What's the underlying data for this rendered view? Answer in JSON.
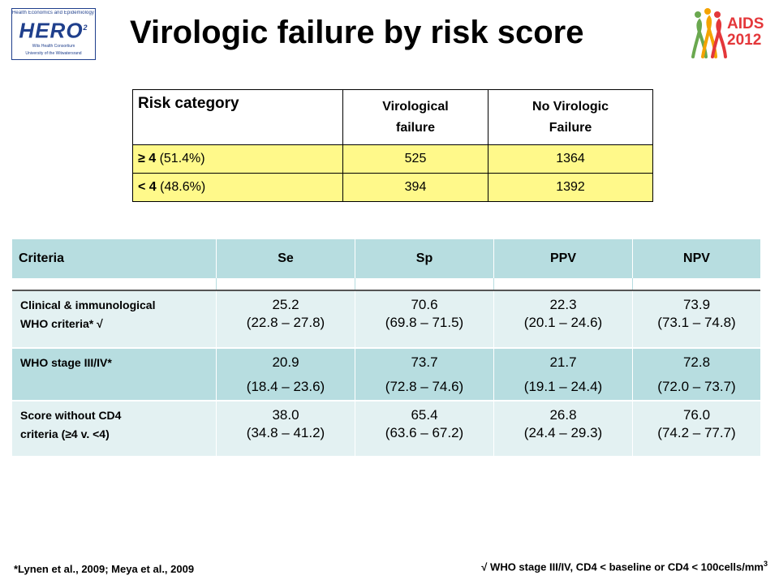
{
  "hero_logo": {
    "top_text": "Health Economics and Epidemiology Research Office",
    "word": "HERO",
    "superscript": "2",
    "bottom_line1": "Wits Health Consortium",
    "bottom_line2": "University of the Witwatersrand"
  },
  "title": "Virologic failure by risk score",
  "aids_logo": {
    "text_line1": "AIDS",
    "text_line2": "2012",
    "colors": [
      "#e4373a",
      "#6aa84f",
      "#f4a300"
    ]
  },
  "risk_table": {
    "headers": {
      "risk_category": "Risk category",
      "vf_line1": "Virological",
      "vf_line2": "failure",
      "novf_line1": "No Virologic",
      "novf_line2": "Failure"
    },
    "rows": [
      {
        "label_bold": "≥ 4",
        "label_rest": " (51.4%)",
        "vf": "525",
        "novf": "1364"
      },
      {
        "label_bold": "< 4",
        "label_rest": " (48.6%)",
        "vf": "394",
        "novf": "1392"
      }
    ]
  },
  "criteria_table": {
    "headers": [
      "Criteria",
      "Se",
      "Sp",
      "PPV",
      "NPV"
    ],
    "rows": [
      {
        "criteria_line1": "Clinical  & immunological",
        "criteria_line2": "WHO criteria* √",
        "se": [
          "25.2",
          "(22.8 – 27.8)"
        ],
        "sp": [
          "70.6",
          "(69.8 – 71.5)"
        ],
        "ppv": [
          "22.3",
          "(20.1 – 24.6)"
        ],
        "npv": [
          "73.9",
          "(73.1 – 74.8)"
        ]
      },
      {
        "criteria_line1": "WHO stage III/IV*",
        "criteria_line2": "",
        "se": [
          "20.9",
          "(18.4 – 23.6)"
        ],
        "sp": [
          "73.7",
          "(72.8 – 74.6)"
        ],
        "ppv": [
          "21.7",
          "(19.1 – 24.4)"
        ],
        "npv": [
          "72.8",
          "(72.0 – 73.7)"
        ]
      },
      {
        "criteria_line1": "Score without CD4",
        "criteria_line2": "criteria (≥4 v. <4)",
        "se": [
          "38.0",
          "(34.8 – 41.2)"
        ],
        "sp": [
          "65.4",
          "(63.6 – 67.2)"
        ],
        "ppv": [
          "26.8",
          "(24.4 – 29.3)"
        ],
        "npv": [
          "76.0",
          "(74.2 – 77.7)"
        ]
      }
    ]
  },
  "footnote_left": "*Lynen et al., 2009; Meya et al., 2009",
  "footnote_right": "√ WHO stage III/IV, CD4 < baseline or CD4 < 100cells/mm",
  "footnote_right_sup": "3",
  "colors": {
    "yellow_row": "#fff98a",
    "teal_dark": "#b7dde0",
    "teal_light": "#e3f1f2",
    "logo_blue": "#1f3f8c"
  }
}
